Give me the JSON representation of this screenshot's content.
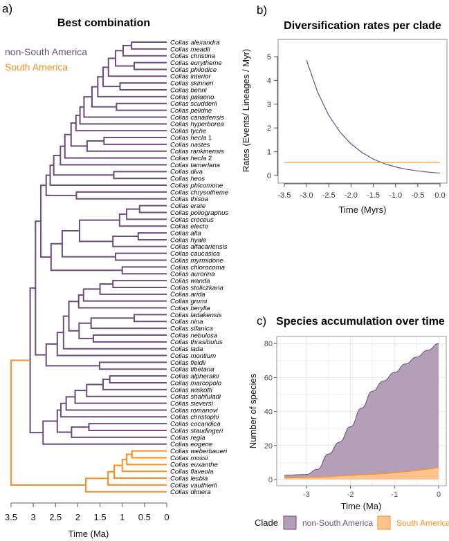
{
  "panel_a": {
    "label": "a)",
    "title": "Best combination",
    "legend": [
      {
        "name": "non-South America",
        "color": "#6e4a7e"
      },
      {
        "name": "South America",
        "color": "#ff8c1a"
      }
    ],
    "xlabel": "Time (Ma)",
    "xticks": [
      "3.5",
      "3",
      "2.5",
      "2",
      "1.5",
      "1",
      "0.5",
      "0"
    ],
    "root_age": 3.5,
    "root_color": "#ff8c1a",
    "clades": [
      {
        "name": "non-South America",
        "color": "#6e4a7e",
        "tree": [
          3.07,
          [
            2.95,
            [
              2.83,
              [
                2.71,
                [
                  2.62,
                  [
                    2.54,
                    [
                      2.39,
                      [
                        2.29,
                        [
                          2.15,
                          [
                            2.04,
                            [
                              1.95,
                              [
                                1.86,
                                [
                                  1.68,
                                  [
                                    1.55,
                                    [
                                      1.43,
                                      [
                                        1.31,
                                        [
                                          1.15,
                                          [
                                            0.98,
                                            [
                                              0.79,
                                              "Colias alexandra",
                                              "Colias meadii"
                                            ],
                                            "Colias christina"
                                          ],
                                          [
                                            0.73,
                                            "Colias eurytheme",
                                            "Colias philodice"
                                          ]
                                        ],
                                        "Colias interior"
                                      ],
                                      [
                                        1.05,
                                        "Colias skinneri",
                                        "Colias behrii"
                                      ]
                                    ],
                                    "Colias palaeno"
                                  ],
                                  [
                                    1.13,
                                    "Colias scudderii",
                                    "Colias pelidne"
                                  ]
                                ],
                                "Colias canadensis"
                              ],
                              "Colias hyperborea"
                            ],
                            "Colias tyche"
                          ],
                          [
                            1.79,
                            [
                              1.41,
                              "Colias hecla 1",
                              "Colias nastes"
                            ],
                            "Colias rankinensis"
                          ]
                        ],
                        "Colias hecla 2"
                      ],
                      "Colias tamerlana"
                    ],
                    [
                      1.19,
                      "Colias diva",
                      "Colias heos"
                    ]
                  ],
                  "Colias phicomone"
                ],
                [
                  2.03,
                  "Colias chrysotheme",
                  "Colias thisoa"
                ]
              ],
              [
                2.6,
                [
                  2.35,
                  [
                    1.96,
                    [
                      1.06,
                      [
                        0.9,
                        [
                          0.61,
                          "Colias erate",
                          "Colias poliographus"
                        ],
                        "Colias croceus"
                      ],
                      "Colias electo"
                    ],
                    [
                      1.21,
                      [
                        0.64,
                        "Colias alta",
                        "Colias hyale"
                      ],
                      "Colias alfacariensis"
                    ]
                  ],
                  [
                    1.15,
                    "Colias caucasica",
                    "Colias myrmidone"
                  ]
                ],
                [
                  1.0,
                  "Colias chlorocoma",
                  "Colias aurorina"
                ]
              ]
            ],
            [
              2.71,
              [
                2.46,
                [
                  2.32,
                  [
                    2.2,
                    [
                      1.98,
                      [
                        1.87,
                        [
                          1.5,
                          [
                            1.21,
                            "Colias wanda",
                            "Colias stoliczkana"
                          ],
                          "Colias arida"
                        ],
                        "Colias grumi"
                      ],
                      "Colias berylla"
                    ],
                    [
                      1.97,
                      [
                        1.7,
                        [
                          0.73,
                          "Colias ladakensis",
                          "Colias nina"
                        ],
                        "Colias sifanica"
                      ],
                      [
                        1.65,
                        "Colias nebulosa",
                        "Colias thrasibulus"
                      ]
                    ]
                  ],
                  "Colias lada"
                ],
                "Colias montium"
              ],
              [
                1.51,
                "Colias fieldii",
                "Colias tibetana"
              ]
            ]
          ],
          [
            2.78,
            [
              2.46,
              [
                2.38,
                [
                  2.26,
                  [
                    2.06,
                    [
                      1.8,
                      [
                        1.43,
                        [
                          1.28,
                          "Colias alpherakii",
                          "Colias marcopolo"
                        ],
                        "Colias wiskotti"
                      ],
                      "Colias shahfuladi"
                    ],
                    "Colias sieversi"
                  ],
                  "Colias romanovi"
                ],
                "Colias christophi"
              ],
              [
                2.14,
                [
                  1.75,
                  "Colias cocandica",
                  "Colias staudingeri"
                ],
                "Colias regia"
              ]
            ],
            "Colias eogene"
          ]
        ]
      },
      {
        "name": "South America",
        "color": "#ff8c1a",
        "tree": [
          1.82,
          [
            1.32,
            [
              1.18,
              [
                1.0,
                [
                  0.9,
                  [
                    0.78,
                    "Colias weberbaueri",
                    "Colias mossi"
                  ],
                  "Colias euxanthe"
                ],
                "Colias flaveola"
              ],
              "Colias lesbia"
            ],
            "Colias vauthierii"
          ],
          "Colias dimera"
        ]
      }
    ]
  },
  "chart_data": [
    {
      "type": "line",
      "label": "b)",
      "title": "Diversification rates per clade",
      "xlabel": "Time (Myrs)",
      "ylabel": "Rates (Events/ Lineages / Myr)",
      "xlim": [
        -3.5,
        0
      ],
      "ylim": [
        0,
        5
      ],
      "xticks": [
        "-3.5",
        "-3.0",
        "-2.5",
        "-2.0",
        "-1.5",
        "-1.0",
        "-0.5",
        "0.0"
      ],
      "yticks": [
        "0",
        "1",
        "2",
        "3",
        "4",
        "5"
      ],
      "series": [
        {
          "color": "#6e4a7e",
          "x": [
            -3.0,
            -2.75,
            -2.5,
            -2.25,
            -2.0,
            -1.75,
            -1.5,
            -1.25,
            -1.0,
            -0.75,
            -0.5,
            -0.25,
            0.0
          ],
          "y": [
            4.85,
            3.5,
            2.53,
            1.83,
            1.33,
            0.96,
            0.69,
            0.5,
            0.36,
            0.26,
            0.19,
            0.14,
            0.1
          ]
        },
        {
          "color": "#ff8c1a",
          "x": [
            -3.5,
            0.0
          ],
          "y": [
            0.55,
            0.55
          ]
        }
      ]
    },
    {
      "type": "area",
      "label": "c)",
      "title": "Species accumulation over time",
      "xlabel": "Time (Ma)",
      "ylabel": "Number of species",
      "xlim": [
        -3.5,
        0
      ],
      "ylim": [
        0,
        80
      ],
      "xticks": [
        "-3",
        "-2",
        "-1",
        "0"
      ],
      "yticks": [
        "0",
        "20",
        "40",
        "60",
        "80"
      ],
      "grid": true,
      "legend_title": "Clade",
      "legend_position": "bottom",
      "x": [
        -3.5,
        -3.0,
        -2.75,
        -2.5,
        -2.25,
        -2.0,
        -1.75,
        -1.5,
        -1.25,
        -1.0,
        -0.75,
        -0.5,
        -0.25,
        0.0
      ],
      "series": [
        {
          "name": "non-South America",
          "fill": "#b3a0b8",
          "line": "#6e4a7e",
          "total": [
            2.5,
            3,
            6,
            15,
            22,
            31,
            42,
            52,
            58,
            63,
            68,
            72,
            76,
            80
          ]
        },
        {
          "name": "South America",
          "fill": "#ffc48f",
          "line": "#ff8c1a",
          "values": [
            1,
            1.2,
            1.4,
            1.7,
            2.1,
            2.5,
            2.8,
            3.1,
            3.5,
            4,
            4.6,
            5.3,
            6.1,
            7
          ]
        }
      ]
    }
  ]
}
